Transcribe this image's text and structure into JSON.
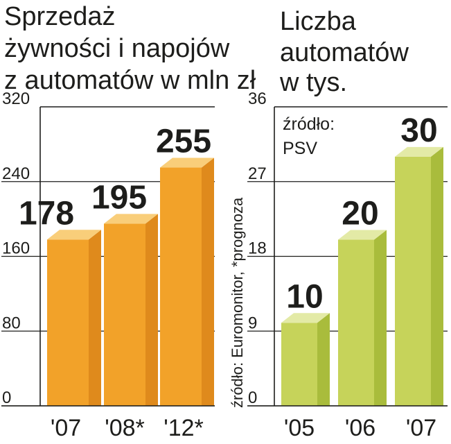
{
  "chart_data": [
    {
      "type": "bar",
      "title": [
        "Sprzedaż",
        "żywności i napojów",
        "z automatów w mln zł"
      ],
      "categories": [
        "'07",
        "'08*",
        "'12*"
      ],
      "values": [
        178,
        195,
        255
      ],
      "yticks": [
        0,
        80,
        160,
        240,
        320
      ],
      "ylim": [
        0,
        320
      ],
      "grid": true,
      "colors": {
        "front": "#F2A229",
        "side": "#DF8A1C",
        "top": "#F9CE7A"
      },
      "source": "źródło: Euromonitor, *prognoza"
    },
    {
      "type": "bar",
      "title": [
        "Liczba",
        "automatów",
        "w tys."
      ],
      "categories": [
        "'05",
        "'06",
        "'07"
      ],
      "values": [
        10,
        20,
        30
      ],
      "yticks": [
        0,
        9,
        18,
        27,
        36
      ],
      "ylim": [
        0,
        36
      ],
      "grid": true,
      "colors": {
        "front": "#C6D35A",
        "side": "#A9BC3C",
        "top": "#E3EAA6"
      },
      "source": [
        "źródło:",
        "PSV"
      ]
    }
  ]
}
